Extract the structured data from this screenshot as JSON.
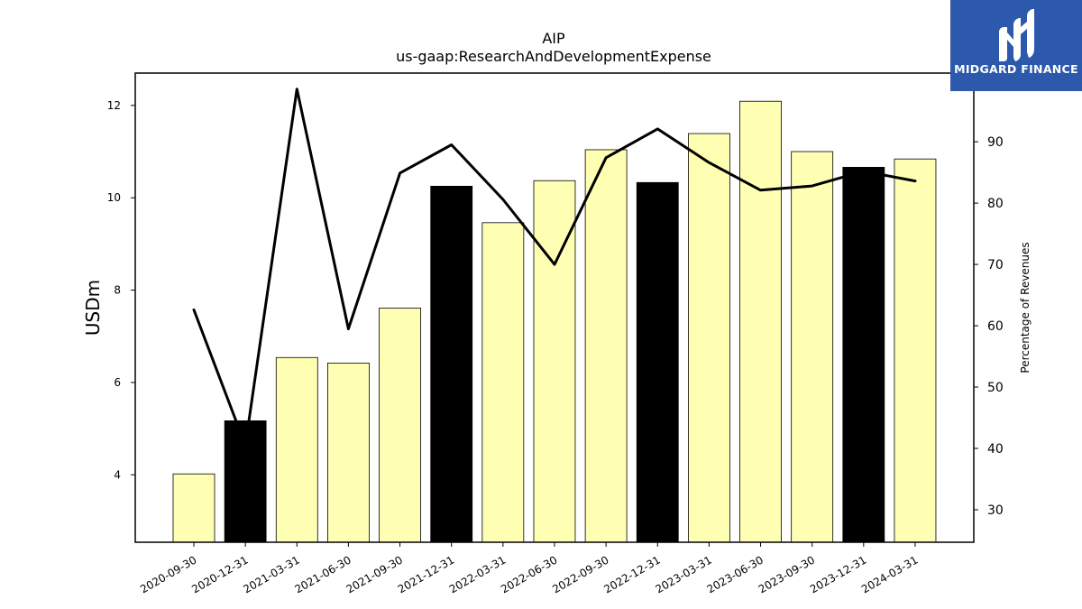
{
  "logo": {
    "text": "MIDGARD FINANCE",
    "background": "#2c59ab"
  },
  "chart_data": {
    "type": "bar",
    "title": "AIP",
    "subtitle": "us-gaap:ResearchAndDevelopmentExpense",
    "ylabel": "USDm",
    "y2label": "Percentage of Revenues",
    "categories": [
      "2020-09-30",
      "2020-12-31",
      "2021-03-31",
      "2021-06-30",
      "2021-09-30",
      "2021-12-31",
      "2022-03-31",
      "2022-06-30",
      "2022-09-30",
      "2022-12-31",
      "2023-03-31",
      "2023-06-30",
      "2023-09-30",
      "2023-12-31",
      "2024-03-31"
    ],
    "series": [
      {
        "kind": "bar",
        "axis": "left",
        "values": [
          4.02,
          5.17,
          6.54,
          6.42,
          7.61,
          10.25,
          9.46,
          10.37,
          11.04,
          10.33,
          11.39,
          12.09,
          11.0,
          10.66,
          10.84
        ],
        "colors": [
          "#ffffb3",
          "#000000",
          "#ffffb3",
          "#ffffb3",
          "#ffffb3",
          "#000000",
          "#ffffb3",
          "#ffffb3",
          "#ffffb3",
          "#000000",
          "#ffffb3",
          "#ffffb3",
          "#ffffb3",
          "#000000",
          "#ffffb3"
        ]
      },
      {
        "kind": "line",
        "axis": "right",
        "color": "#000000",
        "values": [
          62.6,
          40.5,
          98.6,
          59.5,
          84.9,
          89.5,
          80.6,
          70.0,
          87.4,
          92.1,
          86.6,
          82.1,
          82.8,
          85.2,
          83.6
        ]
      }
    ],
    "ylim": [
      2.54,
      12.7
    ],
    "yticks": [
      4,
      6,
      8,
      10,
      12
    ],
    "y2lim": [
      24.7,
      101.2
    ],
    "y2ticks": [
      30,
      40,
      50,
      60,
      70,
      80,
      90
    ],
    "grid": false,
    "legend": "none"
  }
}
